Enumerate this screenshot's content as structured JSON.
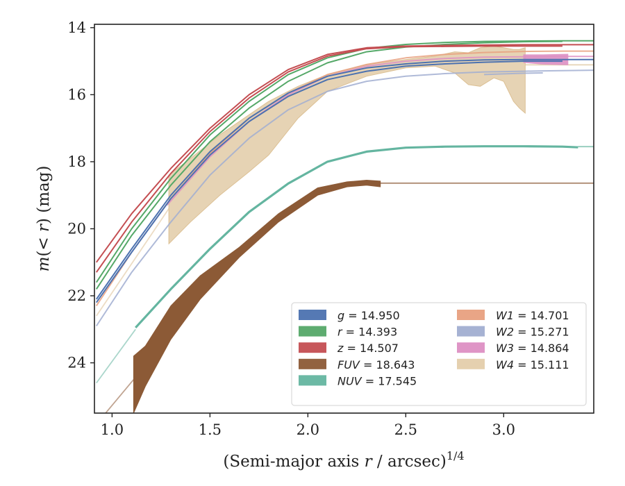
{
  "chart_data": {
    "type": "line",
    "title": "",
    "xlabel": {
      "pre": "(Semi-major axis ",
      "var": "r",
      "post": " / arcsec)",
      "sup": "1/4"
    },
    "ylabel": {
      "var1": "m",
      "mid": "(< ",
      "var2": "r",
      "post": ") (mag)"
    },
    "xlim": [
      0.91,
      3.46
    ],
    "ylim": [
      25.5,
      13.9
    ],
    "y_inverted": true,
    "xticks": [
      "1.0",
      "1.5",
      "2.0",
      "2.5",
      "3.0"
    ],
    "xtick_values": [
      1.0,
      1.5,
      2.0,
      2.5,
      3.0
    ],
    "yticks": [
      "14",
      "16",
      "18",
      "20",
      "22",
      "24"
    ],
    "ytick_values": [
      14,
      16,
      18,
      20,
      22,
      24
    ],
    "grid": false,
    "legend_position": "lower-right",
    "series": [
      {
        "band": "g",
        "value": "14.950",
        "color": "#4c72b0",
        "type": "line",
        "x": [
          0.92,
          1.1,
          1.3,
          1.5,
          1.7,
          1.9,
          2.1,
          2.3,
          2.5,
          2.7,
          2.9,
          3.1,
          3.3,
          3.46
        ],
        "y": [
          22.1,
          20.6,
          19.0,
          17.7,
          16.7,
          15.95,
          15.45,
          15.2,
          15.08,
          15.0,
          14.96,
          14.95,
          14.95,
          14.95
        ],
        "x2": [
          0.92,
          1.1,
          1.3,
          1.5,
          1.7,
          1.9,
          2.1,
          2.3,
          2.5,
          2.7,
          2.9,
          3.1,
          3.3
        ],
        "y2": [
          22.2,
          20.7,
          19.1,
          17.8,
          16.8,
          16.05,
          15.55,
          15.3,
          15.15,
          15.08,
          15.03,
          15.0,
          15.0
        ]
      },
      {
        "band": "r",
        "value": "14.393",
        "color": "#55a868",
        "type": "line",
        "x": [
          0.92,
          1.1,
          1.3,
          1.5,
          1.7,
          1.9,
          2.1,
          2.3,
          2.5,
          2.7,
          2.9,
          3.1,
          3.3,
          3.46
        ],
        "y": [
          21.6,
          20.0,
          18.5,
          17.2,
          16.2,
          15.4,
          14.9,
          14.62,
          14.5,
          14.44,
          14.41,
          14.4,
          14.39,
          14.39
        ],
        "x2": [
          0.92,
          1.1,
          1.3,
          1.5,
          1.7,
          1.9,
          2.1,
          2.3,
          2.5,
          2.7,
          2.9,
          3.1,
          3.3
        ],
        "y2": [
          21.8,
          20.2,
          18.7,
          17.4,
          16.4,
          15.6,
          15.05,
          14.72,
          14.58,
          14.5,
          14.45,
          14.42,
          14.41
        ]
      },
      {
        "band": "z",
        "value": "14.507",
        "color": "#c44e52",
        "type": "line",
        "x": [
          0.92,
          1.1,
          1.3,
          1.5,
          1.7,
          1.9,
          2.1,
          2.3,
          2.5,
          2.7,
          2.9,
          3.1,
          3.3,
          3.46
        ],
        "y": [
          21.0,
          19.55,
          18.2,
          17.0,
          16.0,
          15.25,
          14.8,
          14.6,
          14.55,
          14.53,
          14.52,
          14.51,
          14.51,
          14.51
        ],
        "x2": [
          0.92,
          1.1,
          1.3,
          1.5,
          1.7,
          1.9,
          2.1,
          2.3,
          2.5,
          2.7,
          2.9,
          3.1,
          3.3
        ],
        "y2": [
          21.3,
          19.8,
          18.35,
          17.1,
          16.1,
          15.32,
          14.85,
          14.63,
          14.57,
          14.56,
          14.55,
          14.55,
          14.55
        ]
      },
      {
        "band": "FUV",
        "value": "18.643",
        "color": "#8c5a36",
        "type": "band",
        "x": [
          1.11,
          1.17,
          1.3,
          1.45,
          1.65,
          1.85,
          2.05,
          2.2,
          2.3,
          2.37
        ],
        "y_low": [
          25.5,
          24.7,
          23.3,
          22.1,
          20.85,
          19.8,
          19.0,
          18.75,
          18.7,
          18.75
        ],
        "y_high": [
          23.8,
          23.5,
          22.3,
          21.4,
          20.55,
          19.55,
          18.78,
          18.6,
          18.55,
          18.58
        ],
        "ext_x": [
          0.91,
          1.11
        ],
        "ext_y": [
          25.9,
          24.5
        ],
        "flat_x": [
          2.37,
          3.46
        ],
        "flat_y": [
          18.64,
          18.64
        ]
      },
      {
        "band": "NUV",
        "value": "17.545",
        "color": "#64b5a0",
        "type": "line",
        "x": [
          1.12,
          1.3,
          1.5,
          1.7,
          1.9,
          2.1,
          2.3,
          2.5,
          2.7,
          2.9,
          3.1,
          3.3,
          3.38
        ],
        "y": [
          22.95,
          21.8,
          20.6,
          19.5,
          18.65,
          18.0,
          17.7,
          17.58,
          17.55,
          17.54,
          17.54,
          17.55,
          17.57
        ],
        "ext_x": [
          0.92,
          1.12
        ],
        "ext_y": [
          24.6,
          23.0
        ],
        "flat_x": [
          3.38,
          3.46
        ],
        "flat_y": [
          17.55,
          17.55
        ]
      },
      {
        "band": "W1",
        "value": "14.701",
        "color": "#e8a07f",
        "type": "line",
        "x": [
          0.92,
          1.1,
          1.3,
          1.5,
          1.7,
          1.9,
          2.1,
          2.3,
          2.5,
          2.7,
          2.9,
          3.1,
          3.3,
          3.46
        ],
        "y": [
          22.3,
          20.7,
          19.1,
          17.75,
          16.7,
          15.95,
          15.4,
          15.1,
          14.9,
          14.8,
          14.74,
          14.71,
          14.7,
          14.7
        ]
      },
      {
        "band": "W2",
        "value": "15.271",
        "color": "#a1aed1",
        "type": "line",
        "x": [
          0.92,
          1.1,
          1.3,
          1.5,
          1.7,
          1.9,
          2.1,
          2.3,
          2.5,
          2.7,
          2.9,
          3.1,
          3.2,
          3.46
        ],
        "y": [
          22.9,
          21.3,
          19.8,
          18.4,
          17.3,
          16.45,
          15.9,
          15.6,
          15.45,
          15.37,
          15.32,
          15.3,
          15.29,
          15.27
        ],
        "x2": [
          2.9,
          3.0,
          3.1,
          3.2
        ],
        "y2": [
          15.4,
          15.38,
          15.36,
          15.35
        ]
      },
      {
        "band": "W3",
        "value": "14.864",
        "color": "#dd8fc3",
        "type": "line",
        "x": [
          1.28,
          1.5,
          1.7,
          1.9,
          2.1,
          2.3,
          2.5,
          2.7,
          2.9,
          3.1,
          3.3,
          3.46
        ],
        "y": [
          19.3,
          17.85,
          16.8,
          16.0,
          15.45,
          15.15,
          15.0,
          14.92,
          14.88,
          14.87,
          14.86,
          14.86
        ],
        "band_x": [
          3.1,
          3.2,
          3.33
        ],
        "band_low": [
          15.05,
          15.1,
          15.12
        ],
        "band_high": [
          14.8,
          14.8,
          14.78
        ]
      },
      {
        "band": "W4",
        "value": "15.111",
        "color": "#dcc094",
        "type": "band",
        "x": [
          1.29,
          1.4,
          1.55,
          1.7,
          1.8,
          1.95,
          2.1,
          2.3,
          2.5,
          2.65,
          2.75,
          2.82,
          2.88,
          2.95,
          3.0,
          3.05,
          3.08,
          3.11
        ],
        "y_low": [
          20.45,
          19.8,
          19.0,
          18.3,
          17.8,
          16.7,
          15.9,
          15.45,
          15.2,
          15.15,
          15.35,
          15.7,
          15.75,
          15.5,
          15.6,
          16.2,
          16.4,
          16.55
        ],
        "y_high": [
          18.4,
          17.9,
          17.2,
          16.6,
          16.2,
          15.75,
          15.4,
          15.1,
          14.95,
          14.85,
          14.72,
          14.75,
          14.6,
          14.55,
          14.6,
          14.65,
          14.65,
          14.6
        ],
        "ext_x": [
          0.92,
          1.29
        ],
        "ext_y": [
          22.6,
          19.4
        ],
        "flat_x": [
          3.11,
          3.46
        ],
        "flat_y": [
          15.11,
          15.11
        ]
      }
    ]
  }
}
